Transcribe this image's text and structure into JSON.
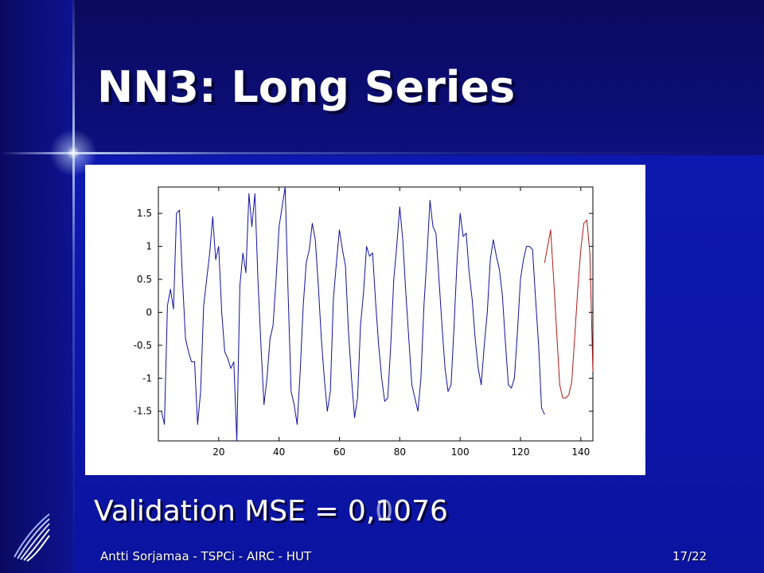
{
  "slide": {
    "title": "NN3: Long Series",
    "mse_old": "Validation MSE = 0,1076",
    "mse_new": "Validation MSE = 0,0076",
    "footer_left": "Antti Sorjamaa - TSPCi - AIRC - HUT",
    "footer_right": "17/22",
    "logo_icon": "wing-logo-icon"
  },
  "colors": {
    "background": "#0b14a0",
    "historical_line": "#1010a0",
    "forecast_line": "#b01818"
  },
  "chart_data": {
    "type": "line",
    "title": "",
    "xlabel": "",
    "ylabel": "",
    "xlim": [
      0,
      144
    ],
    "ylim": [
      -1.95,
      1.9
    ],
    "xticks": [
      20,
      40,
      60,
      80,
      100,
      120,
      140
    ],
    "yticks": [
      -1.5,
      -1,
      -0.5,
      0,
      0.5,
      1,
      1.5
    ],
    "ytick_labels": [
      "-1.5",
      "-1",
      "-0.5",
      "0",
      "0.5",
      "1",
      "1.5"
    ],
    "grid": false,
    "series": [
      {
        "name": "",
        "color": "#1010a0",
        "x": [
          1,
          2,
          3,
          4,
          5,
          6,
          7,
          8,
          9,
          10,
          11,
          12,
          13,
          14,
          15,
          16,
          17,
          18,
          19,
          20,
          21,
          22,
          23,
          24,
          25,
          26,
          27,
          28,
          29,
          30,
          31,
          32,
          33,
          34,
          35,
          36,
          37,
          38,
          39,
          40,
          41,
          42,
          43,
          44,
          45,
          46,
          47,
          48,
          49,
          50,
          51,
          52,
          53,
          54,
          55,
          56,
          57,
          58,
          59,
          60,
          61,
          62,
          63,
          64,
          65,
          66,
          67,
          68,
          69,
          70,
          71,
          72,
          73,
          74,
          75,
          76,
          77,
          78,
          79,
          80,
          81,
          82,
          83,
          84,
          85,
          86,
          87,
          88,
          89,
          90,
          91,
          92,
          93,
          94,
          95,
          96,
          97,
          98,
          99,
          100,
          101,
          102,
          103,
          104,
          105,
          106,
          107,
          108,
          109,
          110,
          111,
          112,
          113,
          114,
          115,
          116,
          117,
          118,
          119,
          120,
          121,
          122,
          123,
          124,
          125,
          126,
          127,
          128
        ],
        "y": [
          -1.5,
          -1.7,
          0.1,
          0.35,
          0.05,
          1.5,
          1.55,
          0.5,
          -0.4,
          -0.6,
          -0.75,
          -0.75,
          -1.7,
          -1.2,
          0.1,
          0.5,
          0.9,
          1.45,
          0.8,
          1.0,
          0.0,
          -0.6,
          -0.7,
          -0.85,
          -0.75,
          -2.0,
          0.4,
          0.9,
          0.6,
          1.8,
          1.3,
          1.8,
          0.5,
          -0.5,
          -1.4,
          -1.0,
          -0.4,
          -0.2,
          0.5,
          1.3,
          1.6,
          1.9,
          0.3,
          -1.2,
          -1.4,
          -1.7,
          -0.9,
          0.1,
          0.75,
          0.95,
          1.35,
          1.1,
          0.4,
          -0.4,
          -1.0,
          -1.5,
          -1.2,
          0.2,
          0.75,
          1.25,
          0.95,
          0.7,
          -0.3,
          -1.0,
          -1.6,
          -1.3,
          -0.2,
          0.3,
          1.0,
          0.85,
          0.9,
          0.15,
          -0.5,
          -1.0,
          -1.35,
          -1.3,
          -0.5,
          0.5,
          1.0,
          1.6,
          1.1,
          0.3,
          -0.4,
          -1.1,
          -1.3,
          -1.5,
          -1.0,
          0.1,
          0.85,
          1.7,
          1.3,
          1.2,
          0.5,
          -0.2,
          -0.85,
          -1.2,
          -1.1,
          -0.2,
          0.8,
          1.5,
          1.15,
          1.2,
          0.6,
          0.2,
          -0.4,
          -0.85,
          -1.1,
          -0.5,
          0.0,
          0.8,
          1.1,
          0.85,
          0.65,
          0.25,
          -0.45,
          -1.1,
          -1.15,
          -1.0,
          -0.3,
          0.5,
          0.8,
          1.0,
          1.0,
          0.95,
          0.2,
          -0.5,
          -1.45,
          -1.55
        ]
      },
      {
        "name": "",
        "color": "#b01818",
        "x": [
          128,
          129,
          130,
          131,
          132,
          133,
          134,
          135,
          136,
          137,
          138,
          139,
          140,
          141,
          142,
          143,
          144
        ],
        "y": [
          0.75,
          1.0,
          1.25,
          0.5,
          -0.3,
          -1.1,
          -1.3,
          -1.3,
          -1.25,
          -1.05,
          -0.35,
          0.35,
          0.95,
          1.35,
          1.4,
          0.9,
          -0.9
        ]
      }
    ]
  }
}
